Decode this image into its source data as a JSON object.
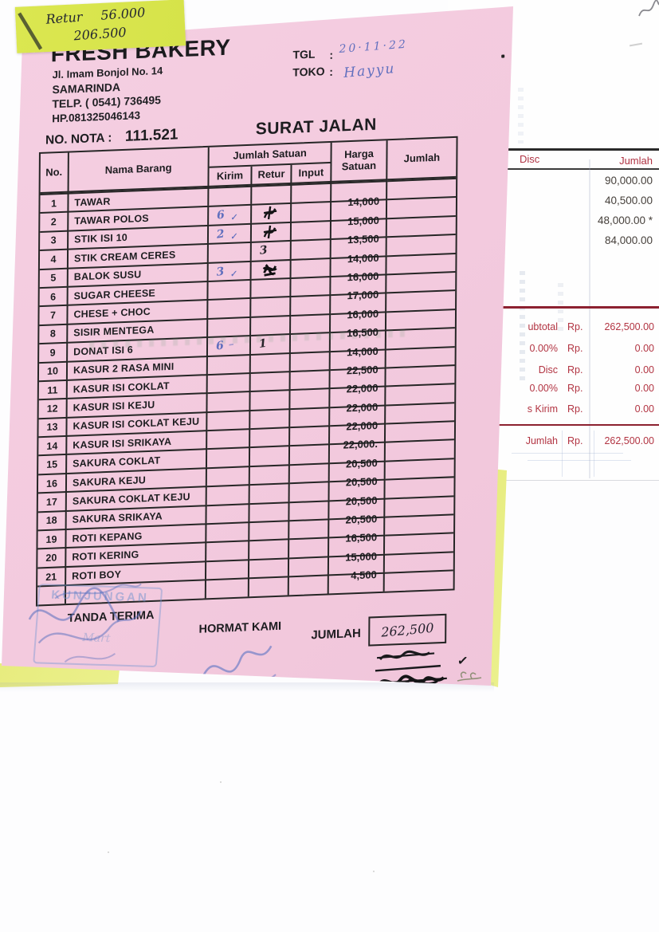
{
  "sticky_note": {
    "label": "Retur",
    "value1": "56.000",
    "value2": "206.500"
  },
  "letterhead": {
    "name": "FRESH BAKERY",
    "address": "Jl. Imam Bonjol No. 14",
    "city": "SAMARINDA",
    "phone": "TELP. ( 0541) 736495",
    "mobile": "HP.081325046143"
  },
  "header": {
    "tgl_label": "TGL",
    "tgl_colon": ":",
    "tgl_value": "20·11·22",
    "toko_label": "TOKO",
    "toko_colon": ":",
    "toko_value": "Hayyu",
    "nota_label": "NO. NOTA :",
    "nota_value": "111.521",
    "title": "SURAT JALAN"
  },
  "table": {
    "col_no": "No.",
    "col_nama": "Nama Barang",
    "col_group": "Jumlah Satuan",
    "col_kirim": "Kirim",
    "col_retur": "Retur",
    "col_input": "Input",
    "col_harga": "Harga Satuan",
    "col_jumlah": "Jumlah",
    "rows": [
      {
        "no": "1",
        "nama": "TAWAR",
        "harga": "14,000",
        "kirim": "",
        "retur": "",
        "kirim_check": false,
        "retur_scribble": false
      },
      {
        "no": "2",
        "nama": "TAWAR POLOS",
        "harga": "15,000",
        "kirim": "6",
        "retur": "",
        "kirim_check": true,
        "retur_scribble": true
      },
      {
        "no": "3",
        "nama": "STIK ISI 10",
        "harga": "13,500",
        "kirim": "2",
        "retur": "",
        "kirim_check": true,
        "retur_scribble": true
      },
      {
        "no": "4",
        "nama": "STIK CREAM CERES",
        "harga": "14,000",
        "kirim": "",
        "retur": "3",
        "kirim_check": false,
        "retur_scribble": false
      },
      {
        "no": "5",
        "nama": "BALOK SUSU",
        "harga": "16,000",
        "kirim": "3",
        "retur": "",
        "kirim_check": true,
        "retur_scribble": true
      },
      {
        "no": "6",
        "nama": "SUGAR CHEESE",
        "harga": "17,000",
        "kirim": "",
        "retur": "",
        "kirim_check": false,
        "retur_scribble": false
      },
      {
        "no": "7",
        "nama": "CHESE + CHOC",
        "harga": "16,000",
        "kirim": "",
        "retur": "",
        "kirim_check": false,
        "retur_scribble": false
      },
      {
        "no": "8",
        "nama": "SISIR MENTEGA",
        "harga": "16,500",
        "kirim": "",
        "retur": "",
        "kirim_check": false,
        "retur_scribble": false
      },
      {
        "no": "9",
        "nama": "DONAT ISI 6",
        "harga": "14,000",
        "kirim": "6",
        "retur": "1",
        "kirim_check": false,
        "retur_scribble": false,
        "kirim_dash": true
      },
      {
        "no": "10",
        "nama": "KASUR 2 RASA MINI",
        "harga": "22,500",
        "kirim": "",
        "retur": "",
        "kirim_check": false,
        "retur_scribble": false
      },
      {
        "no": "11",
        "nama": "KASUR ISI COKLAT",
        "harga": "22,000",
        "kirim": "",
        "retur": "",
        "kirim_check": false,
        "retur_scribble": false
      },
      {
        "no": "12",
        "nama": "KASUR ISI KEJU",
        "harga": "22,000",
        "kirim": "",
        "retur": "",
        "kirim_check": false,
        "retur_scribble": false
      },
      {
        "no": "13",
        "nama": "KASUR ISI COKLAT KEJU",
        "harga": "22,000",
        "kirim": "",
        "retur": "",
        "kirim_check": false,
        "retur_scribble": false
      },
      {
        "no": "14",
        "nama": "KASUR ISI SRIKAYA",
        "harga": "22,000.",
        "kirim": "",
        "retur": "",
        "kirim_check": false,
        "retur_scribble": false
      },
      {
        "no": "15",
        "nama": "SAKURA COKLAT",
        "harga": "20,500",
        "kirim": "",
        "retur": "",
        "kirim_check": false,
        "retur_scribble": false
      },
      {
        "no": "16",
        "nama": "SAKURA KEJU",
        "harga": "20,500",
        "kirim": "",
        "retur": "",
        "kirim_check": false,
        "retur_scribble": false
      },
      {
        "no": "17",
        "nama": "SAKURA COKLAT KEJU",
        "harga": "20,500",
        "kirim": "",
        "retur": "",
        "kirim_check": false,
        "retur_scribble": false
      },
      {
        "no": "18",
        "nama": "SAKURA SRIKAYA",
        "harga": "20,500",
        "kirim": "",
        "retur": "",
        "kirim_check": false,
        "retur_scribble": false
      },
      {
        "no": "19",
        "nama": "ROTI KEPANG",
        "harga": "16,500",
        "kirim": "",
        "retur": "",
        "kirim_check": false,
        "retur_scribble": false
      },
      {
        "no": "20",
        "nama": "ROTI KERING",
        "harga": "15,000",
        "kirim": "",
        "retur": "",
        "kirim_check": false,
        "retur_scribble": false
      },
      {
        "no": "21",
        "nama": "ROTI BOY",
        "harga": "4,500",
        "kirim": "",
        "retur": "",
        "kirim_check": false,
        "retur_scribble": false
      },
      {
        "no": "",
        "nama": "",
        "harga": "",
        "kirim": "",
        "retur": "",
        "kirim_check": false,
        "retur_scribble": false
      }
    ]
  },
  "footer": {
    "tanda_terima": "TANDA TERIMA",
    "hormat_kami": "HORMAT KAMI",
    "jumlah_label": "JUMLAH",
    "jumlah_value": "262,500",
    "stamp_top": "KUNJUNGAN",
    "stamp_inner": "Mart"
  },
  "marks": {
    "check": "✓",
    "dash": "–"
  },
  "receipt": {
    "col_disc": "Disc",
    "col_jumlah": "Jumlah",
    "rp": "Rp.",
    "amounts": [
      "90,000.00",
      "40,500.00",
      "48,000.00 *",
      "84,000.00"
    ],
    "summary": [
      {
        "label": "ubtotal",
        "value": "262,500.00"
      },
      {
        "label": "0.00%",
        "value": "0.00"
      },
      {
        "label": "Disc",
        "value": "0.00"
      },
      {
        "label": "0.00%",
        "value": "0.00"
      },
      {
        "label": "s Kirim",
        "value": "0.00"
      }
    ],
    "total_label": "Jumlah",
    "total_value": "262,500.00"
  },
  "colors": {
    "pink_paper": "#f4cde0",
    "sticky_note": "#d9e54e",
    "yellow_paper": "#e9ee86",
    "receipt_red": "#b23442",
    "ink_blue": "#4b5fb9",
    "ink_black": "#1c1c1c"
  }
}
